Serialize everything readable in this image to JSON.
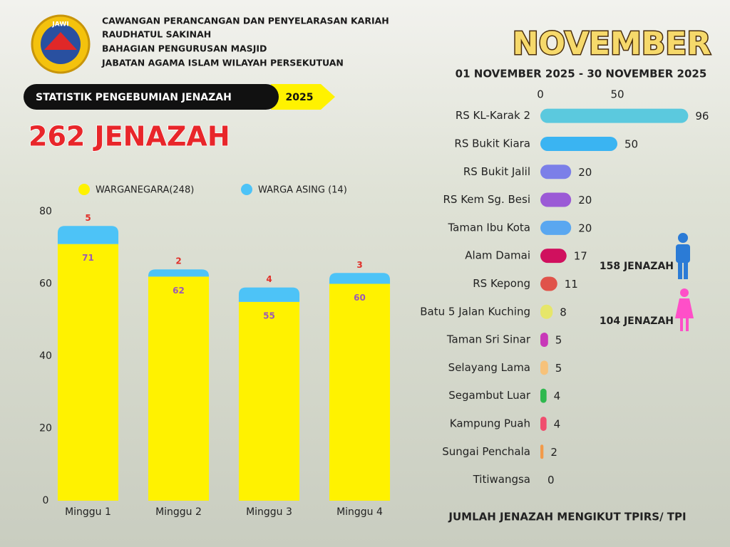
{
  "header": {
    "logo_text": "JAWI",
    "lines": [
      "CAWANGAN PERANCANGAN DAN PENYELARASAN KARIAH",
      "RAUDHATUL SAKINAH",
      "BAHAGIAN PENGURUSAN MASJID",
      "JABATAN AGAMA ISLAM WILAYAH PERSEKUTUAN"
    ]
  },
  "banner": {
    "label": "STATISTIK PENGEBUMIAN JENAZAH",
    "year": "2025"
  },
  "total": "262 JENAZAH",
  "month": "NOVEMBER",
  "period": "01 NOVEMBER 2025 - 30 NOVEMBER 2025",
  "gender": {
    "male": "158 JENAZAH",
    "female": "104 JENAZAH"
  },
  "chart_data": [
    {
      "type": "bar",
      "stacked": true,
      "categories": [
        "Minggu 1",
        "Minggu 2",
        "Minggu 3",
        "Minggu 4"
      ],
      "series": [
        {
          "name": "WARGANEGARA(248)",
          "color": "#fff200",
          "label_color": "#9b59b6",
          "values": [
            71,
            62,
            55,
            60
          ]
        },
        {
          "name": "WARGA ASING (14)",
          "color": "#4dc3f7",
          "label_color": "#e0302a",
          "values": [
            5,
            2,
            4,
            3
          ]
        }
      ],
      "ylim": [
        0,
        80
      ],
      "yticks": [
        0,
        20,
        40,
        60,
        80
      ]
    },
    {
      "type": "barh",
      "title": "JUMLAH JENAZAH MENGIKUT TPIRS/ TPI",
      "categories": [
        "RS KL-Karak 2",
        "RS Bukit Kiara",
        "RS Bukit Jalil",
        "RS Kem Sg. Besi",
        "Taman Ibu Kota",
        "Alam Damai",
        "RS Kepong",
        "Batu 5 Jalan Kuching",
        "Taman Sri Sinar",
        "Selayang Lama",
        "Segambut Luar",
        "Kampung Puah",
        "Sungai Penchala",
        "Titiwangsa"
      ],
      "values": [
        96,
        50,
        20,
        20,
        20,
        17,
        11,
        8,
        5,
        5,
        4,
        4,
        2,
        0
      ],
      "colors": [
        "#5bc9de",
        "#3ab4f2",
        "#7b7fe8",
        "#9b5ad6",
        "#5aa7f0",
        "#d0105e",
        "#e0534a",
        "#e6e66a",
        "#c838b8",
        "#f7c27a",
        "#2eb84e",
        "#f04e6e",
        "#f29a4a",
        "#888888"
      ],
      "xlim": [
        0,
        100
      ],
      "xticks": [
        0,
        50
      ]
    }
  ]
}
